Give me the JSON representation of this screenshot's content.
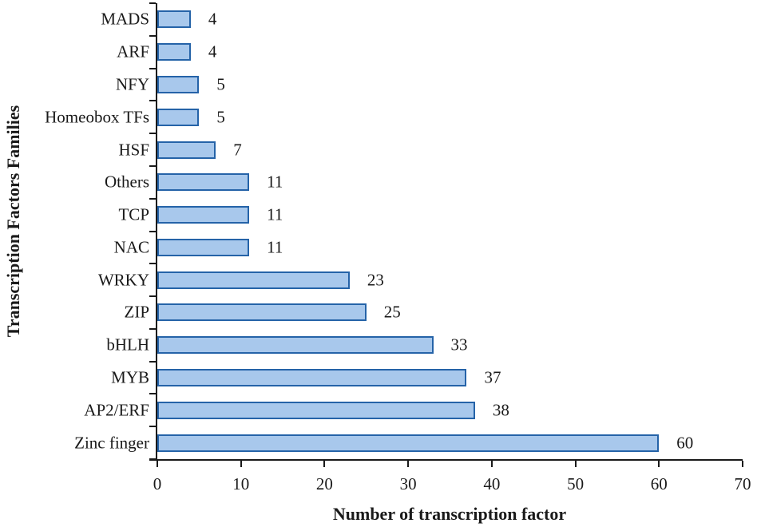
{
  "chart_data": {
    "type": "bar",
    "orientation": "horizontal",
    "categories": [
      "MADS",
      "ARF",
      "NFY",
      "Homeobox TFs",
      "HSF",
      "Others",
      "TCP",
      "NAC",
      "WRKY",
      "ZIP",
      "bHLH",
      "MYB",
      "AP2/ERF",
      "Zinc finger"
    ],
    "values": [
      4,
      4,
      5,
      5,
      7,
      11,
      11,
      11,
      23,
      25,
      33,
      37,
      38,
      60
    ],
    "xlabel": "Number of transcription factor",
    "ylabel": "Transcription Factors Families",
    "xlim": [
      0,
      70
    ],
    "xticks": [
      0,
      10,
      20,
      30,
      40,
      50,
      60,
      70
    ],
    "grid": false,
    "legend": null,
    "data_labels_shown": true,
    "colors": {
      "bar_fill": "#A8C8EC",
      "bar_border": "#2563A8",
      "axis": "#1a1a1a",
      "text": "#1a1a1a"
    }
  }
}
